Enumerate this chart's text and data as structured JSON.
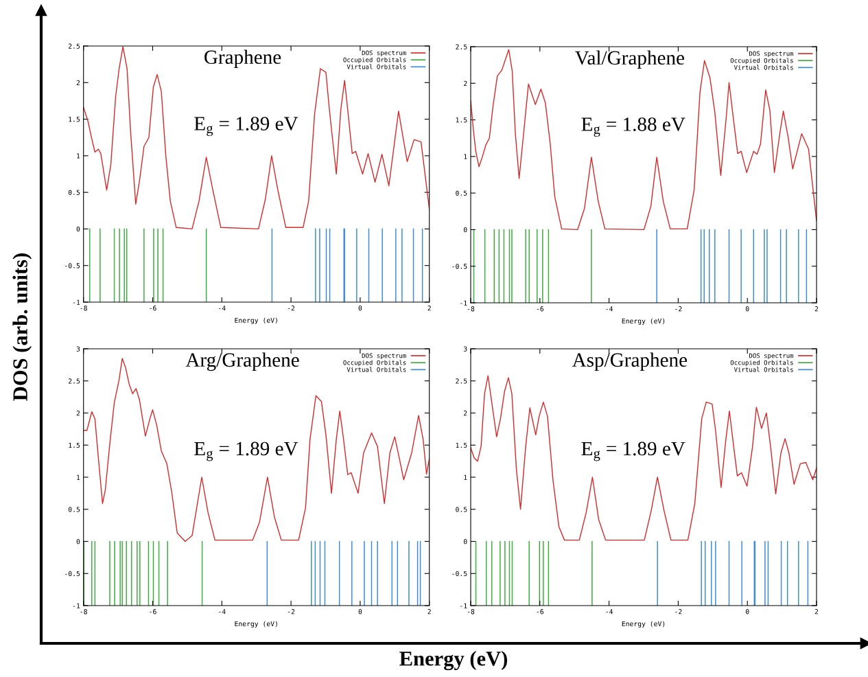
{
  "chart_data": [
    {
      "type": "line",
      "title": "Graphene",
      "xlabel": "Energy (eV)",
      "xlim": [
        -8,
        2
      ],
      "ylim": [
        -1,
        2.5
      ],
      "xticks": [
        -8,
        -6,
        -4,
        -2,
        0,
        2
      ],
      "yticks": [
        -1,
        -0.5,
        0,
        0.5,
        1,
        1.5,
        2,
        2.5
      ],
      "legend": "top right",
      "annotations": [
        "E$_{g}$ = 1.89 eV"
      ],
      "series": [
        {
          "name": "DOS spectrum",
          "type": "line",
          "color": "#d42a2a",
          "x": [
            -8,
            -7.87,
            -7.77,
            -7.67,
            -7.57,
            -7.5,
            -7.33,
            -7.21,
            -7.07,
            -6.97,
            -6.86,
            -6.74,
            -6.64,
            -6.49,
            -6.38,
            -6.25,
            -6.11,
            -5.98,
            -5.87,
            -5.75,
            -5.62,
            -5.49,
            -5.32,
            -4.86,
            -4.66,
            -4.45,
            -4.26,
            -4.03,
            -2.94,
            -2.74,
            -2.56,
            -2.38,
            -2.15,
            -1.65,
            -1.49,
            -1.32,
            -1.15,
            -0.99,
            -0.89,
            -0.69,
            -0.56,
            -0.45,
            -0.36,
            -0.23,
            -0.13,
            0.07,
            0.23,
            0.43,
            0.63,
            0.83,
            1.11,
            1.36,
            1.56,
            1.76,
            2.0
          ],
          "values": [
            1.66,
            1.47,
            1.25,
            1.05,
            1.09,
            1.03,
            0.53,
            0.88,
            1.81,
            2.19,
            2.49,
            2.19,
            1.34,
            0.34,
            0.66,
            1.13,
            1.25,
            1.94,
            2.11,
            1.88,
            1.0,
            0.38,
            0.02,
            0,
            0.38,
            0.98,
            0.53,
            0.02,
            0,
            0.41,
            1.0,
            0.53,
            0.02,
            0.02,
            0.38,
            1.56,
            2.19,
            2.14,
            1.63,
            0.75,
            1.63,
            2.03,
            1.63,
            1.03,
            1.06,
            0.75,
            1.03,
            0.64,
            1.02,
            0.59,
            1.61,
            0.92,
            1.22,
            1.19,
            0.27
          ]
        },
        {
          "name": "Occupied Orbitals",
          "type": "bar",
          "color": "#3aac3a",
          "x": [
            -7.82,
            -7.52,
            -7.11,
            -6.96,
            -6.82,
            -6.75,
            -6.25,
            -5.97,
            -5.85,
            -5.7,
            -4.45
          ],
          "values": [
            -1,
            -1,
            -1,
            -1,
            -1,
            -1,
            -1,
            -1,
            -1,
            -1,
            -1
          ]
        },
        {
          "name": "Virtual Orbitals",
          "type": "bar",
          "color": "#3a8ad8",
          "x": [
            -2.55,
            -1.29,
            -1.17,
            -0.98,
            -0.88,
            -0.47,
            -0.45,
            -0.1,
            0.25,
            0.64,
            1.03,
            1.21,
            1.54,
            1.8
          ],
          "values": [
            -1,
            -1,
            -1,
            -1,
            -1,
            -1,
            -1,
            -1,
            -1,
            -1,
            -1,
            -1,
            -1,
            -1
          ]
        }
      ]
    },
    {
      "type": "line",
      "title": "Val/Graphene",
      "xlabel": "Energy (eV)",
      "xlim": [
        -8,
        2
      ],
      "ylim": [
        -1,
        2.5
      ],
      "xticks": [
        -8,
        -6,
        -4,
        -2,
        0,
        2
      ],
      "yticks": [
        -1,
        -0.5,
        0,
        0.5,
        1,
        1.5,
        2,
        2.5
      ],
      "legend": "top right",
      "annotations": [
        "E$_{g}$ = 1.88 eV"
      ],
      "series": [
        {
          "name": "DOS spectrum",
          "type": "line",
          "color": "#d42a2a",
          "x": [
            -8,
            -7.92,
            -7.85,
            -7.76,
            -7.66,
            -7.56,
            -7.46,
            -7.36,
            -7.23,
            -7.1,
            -7.0,
            -6.9,
            -6.8,
            -6.71,
            -6.6,
            -6.5,
            -6.33,
            -6.23,
            -6.13,
            -5.97,
            -5.84,
            -5.7,
            -5.57,
            -5.37,
            -4.91,
            -4.71,
            -4.51,
            -4.31,
            -4.12,
            -2.99,
            -2.79,
            -2.62,
            -2.43,
            -2.23,
            -1.74,
            -1.54,
            -1.37,
            -1.24,
            -1.08,
            -0.94,
            -0.77,
            -0.61,
            -0.53,
            -0.41,
            -0.28,
            -0.18,
            -0.02,
            0.18,
            0.28,
            0.38,
            0.53,
            0.65,
            0.78,
            0.94,
            1.04,
            1.18,
            1.31,
            1.57,
            1.77,
            2.0
          ],
          "values": [
            1.76,
            1.35,
            1.06,
            0.86,
            1.0,
            1.16,
            1.25,
            1.67,
            2.1,
            2.18,
            2.32,
            2.46,
            2.17,
            1.32,
            0.7,
            1.17,
            1.99,
            1.85,
            1.71,
            1.92,
            1.73,
            1.17,
            0.45,
            0.01,
            0,
            0.29,
            0.99,
            0.38,
            0.01,
            0,
            0.32,
            0.99,
            0.38,
            0.01,
            0.01,
            0.54,
            1.88,
            2.31,
            2.07,
            1.6,
            0.74,
            1.54,
            2.01,
            1.54,
            1.04,
            1.07,
            0.78,
            1.07,
            1.03,
            1.17,
            1.91,
            1.63,
            0.78,
            1.32,
            1.62,
            1.26,
            0.83,
            1.31,
            1.1,
            0.12
          ]
        },
        {
          "name": "Occupied Orbitals",
          "type": "bar",
          "color": "#3aac3a",
          "x": [
            -7.91,
            -7.59,
            -7.32,
            -7.18,
            -7.04,
            -6.88,
            -6.81,
            -6.41,
            -6.31,
            -6.08,
            -5.92,
            -5.75,
            -4.51
          ],
          "values": [
            -1,
            -1,
            -1,
            -1,
            -1,
            -1,
            -1,
            -1,
            -1,
            -1,
            -1,
            -1,
            -1
          ]
        },
        {
          "name": "Virtual Orbitals",
          "type": "bar",
          "color": "#3a8ad8",
          "x": [
            -2.62,
            -1.34,
            -1.25,
            -1.1,
            -0.94,
            -0.53,
            -0.18,
            0.18,
            0.49,
            0.57,
            0.96,
            1.13,
            1.48,
            1.71
          ],
          "values": [
            -1,
            -1,
            -1,
            -1,
            -1,
            -1,
            -1,
            -1,
            -1,
            -1,
            -1,
            -1,
            -1,
            -1
          ]
        }
      ]
    },
    {
      "type": "line",
      "title": "Arg/Graphene",
      "xlabel": "Energy (eV)",
      "xlim": [
        -8,
        2
      ],
      "ylim": [
        -1,
        3
      ],
      "xticks": [
        -8,
        -6,
        -4,
        -2,
        0,
        2
      ],
      "yticks": [
        -1,
        -0.5,
        0,
        0.5,
        1,
        1.5,
        2,
        2.5,
        3
      ],
      "legend": "top right",
      "annotations": [
        "E$_{g}$ = 1.89 eV"
      ],
      "series": [
        {
          "name": "DOS spectrum",
          "type": "line",
          "color": "#d42a2a",
          "x": [
            -8,
            -7.9,
            -7.76,
            -7.67,
            -7.57,
            -7.45,
            -7.37,
            -7.24,
            -7.11,
            -6.97,
            -6.88,
            -6.78,
            -6.68,
            -6.58,
            -6.48,
            -6.38,
            -6.21,
            -6.08,
            -6.0,
            -5.88,
            -5.75,
            -5.59,
            -5.45,
            -5.29,
            -5.06,
            -4.86,
            -4.58,
            -4.4,
            -4.2,
            -3.11,
            -2.91,
            -2.68,
            -2.48,
            -2.28,
            -1.78,
            -1.58,
            -1.45,
            -1.28,
            -1.12,
            -0.99,
            -0.83,
            -0.69,
            -0.59,
            -0.48,
            -0.36,
            -0.26,
            -0.06,
            0.1,
            0.33,
            0.5,
            0.7,
            0.86,
            1.0,
            1.13,
            1.26,
            1.49,
            1.69,
            1.82,
            1.92,
            2.0
          ],
          "values": [
            1.73,
            1.73,
            2.02,
            1.91,
            1.3,
            0.59,
            0.8,
            1.52,
            2.16,
            2.52,
            2.85,
            2.7,
            2.45,
            2.3,
            2.38,
            2.2,
            1.64,
            1.91,
            2.05,
            1.8,
            1.41,
            1.21,
            0.77,
            0.13,
            0,
            0.09,
            1.0,
            0.45,
            0.02,
            0.02,
            0.3,
            1.0,
            0.38,
            0.02,
            0.02,
            0.52,
            1.59,
            2.27,
            2.18,
            1.66,
            0.75,
            1.59,
            2.03,
            1.59,
            1.04,
            1.07,
            0.75,
            1.38,
            1.69,
            1.48,
            0.59,
            1.38,
            1.63,
            1.3,
            0.96,
            1.38,
            1.96,
            1.59,
            1.05,
            1.29
          ]
        },
        {
          "name": "Occupied Orbitals",
          "type": "bar",
          "color": "#3aac3a",
          "x": [
            -7.99,
            -7.76,
            -7.67,
            -7.24,
            -7.1,
            -6.94,
            -6.88,
            -6.76,
            -6.61,
            -6.45,
            -6.37,
            -6.12,
            -5.98,
            -5.82,
            -5.57,
            -4.57
          ],
          "values": [
            -1,
            -1,
            -1,
            -1,
            -1,
            -1,
            -1,
            -1,
            -1,
            -1,
            -1,
            -1,
            -1,
            -1,
            -1,
            -1
          ]
        },
        {
          "name": "Virtual Orbitals",
          "type": "bar",
          "color": "#3a8ad8",
          "x": [
            -2.69,
            -1.41,
            -1.3,
            -1.16,
            -1.02,
            -0.6,
            -0.24,
            0.12,
            0.33,
            0.5,
            0.92,
            1.08,
            1.41,
            1.66,
            1.74
          ],
          "values": [
            -1,
            -1,
            -1,
            -1,
            -1,
            -1,
            -1,
            -1,
            -1,
            -1,
            -1,
            -1,
            -1,
            -1,
            -1
          ]
        }
      ]
    },
    {
      "type": "line",
      "title": "Asp/Graphene",
      "xlabel": "Energy (eV)",
      "xlim": [
        -8,
        2
      ],
      "ylim": [
        -1,
        3
      ],
      "xticks": [
        -8,
        -6,
        -4,
        -2,
        0,
        2
      ],
      "yticks": [
        -1,
        -0.5,
        0,
        0.5,
        1,
        1.5,
        2,
        2.5,
        3
      ],
      "legend": "top right",
      "annotations": [
        "E$_{g}$ = 1.89 eV"
      ],
      "series": [
        {
          "name": "DOS spectrum",
          "type": "line",
          "color": "#d42a2a",
          "x": [
            -8,
            -7.9,
            -7.8,
            -7.7,
            -7.6,
            -7.5,
            -7.4,
            -7.25,
            -7.14,
            -7.02,
            -6.91,
            -6.81,
            -6.68,
            -6.56,
            -6.41,
            -6.29,
            -6.12,
            -6.02,
            -5.9,
            -5.78,
            -5.62,
            -5.45,
            -5.29,
            -4.86,
            -4.66,
            -4.48,
            -4.3,
            -4.1,
            -2.98,
            -2.78,
            -2.6,
            -2.41,
            -2.21,
            -1.72,
            -1.52,
            -1.32,
            -1.19,
            -1.02,
            -0.92,
            -0.76,
            -0.63,
            -0.52,
            -0.39,
            -0.29,
            -0.17,
            -0.01,
            0.15,
            0.26,
            0.41,
            0.55,
            0.67,
            0.82,
            0.97,
            1.09,
            1.2,
            1.35,
            1.53,
            1.69,
            1.89,
            2.0
          ],
          "values": [
            1.46,
            1.3,
            1.25,
            1.48,
            2.3,
            2.58,
            2.2,
            1.63,
            1.91,
            2.34,
            2.55,
            2.3,
            1.13,
            0.5,
            1.48,
            2.08,
            1.66,
            1.95,
            2.17,
            1.95,
            0.95,
            0.23,
            0.02,
            0.02,
            0.45,
            1.0,
            0.34,
            0.02,
            0.02,
            0.48,
            1.0,
            0.48,
            0.02,
            0.02,
            0.59,
            1.91,
            2.17,
            2.14,
            1.73,
            0.84,
            1.55,
            2.03,
            1.45,
            1.02,
            1.07,
            0.86,
            1.48,
            2.09,
            1.76,
            2.0,
            1.48,
            0.74,
            1.38,
            1.6,
            1.38,
            0.89,
            1.21,
            1.23,
            0.96,
            1.14
          ]
        },
        {
          "name": "Occupied Orbitals",
          "type": "bar",
          "color": "#3aac3a",
          "x": [
            -7.85,
            -7.55,
            -7.39,
            -7.15,
            -7.01,
            -6.88,
            -6.8,
            -6.31,
            -6.01,
            -5.9,
            -5.75,
            -4.49
          ],
          "values": [
            -1,
            -1,
            -1,
            -1,
            -1,
            -1,
            -1,
            -1,
            -1,
            -1,
            -1,
            -1
          ]
        },
        {
          "name": "Virtual Orbitals",
          "type": "bar",
          "color": "#3a8ad8",
          "x": [
            -2.6,
            -1.33,
            -1.22,
            -1.04,
            -0.92,
            -0.53,
            -0.16,
            0.2,
            0.22,
            0.51,
            0.6,
            0.98,
            1.16,
            1.48,
            1.75
          ],
          "values": [
            -1,
            -1,
            -1,
            -1,
            -1,
            -1,
            -1,
            -1,
            -1,
            -1,
            -1,
            -1,
            -1,
            -1,
            -1
          ]
        }
      ]
    },
    {
      "type": "other",
      "xlabel": "Energy (eV)",
      "ylabel": "DOS (arb. units)"
    }
  ]
}
